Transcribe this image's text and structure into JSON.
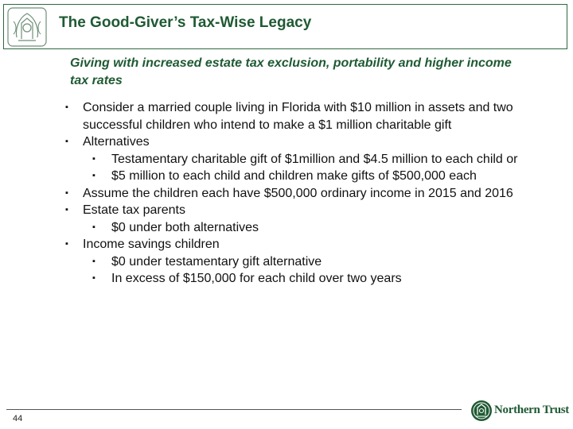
{
  "header": {
    "title": "The Good-Giver’s Tax-Wise Legacy"
  },
  "subtitle": "Giving with increased estate tax exclusion, portability and higher income tax rates",
  "bullets": [
    {
      "text": "Consider a married couple living in Florida with $10 million in assets and two successful children who intend to make a $1 million charitable gift",
      "subs": []
    },
    {
      "text": "Alternatives",
      "subs": [
        "Testamentary charitable gift of $1million and $4.5 million to each child or",
        "$5 million to each child and children make gifts of $500,000 each"
      ]
    },
    {
      "text": "Assume the children each have $500,000 ordinary income in 2015 and 2016",
      "subs": []
    },
    {
      "text": "Estate tax parents",
      "subs": [
        "$0 under both alternatives"
      ]
    },
    {
      "text": "Income savings children",
      "subs": [
        "$0 under testamentary gift alternative",
        "In excess of $150,000 for each child over two years"
      ]
    }
  ],
  "bullet_glyph": "▪",
  "footer": {
    "page_number": "44",
    "brand": "Northern Trust"
  },
  "colors": {
    "brand_green": "#1f5a33",
    "text": "#111111"
  },
  "icons": {
    "header_logo": "northern-trust-crest-icon",
    "footer_logo": "northern-trust-emblem-icon"
  }
}
